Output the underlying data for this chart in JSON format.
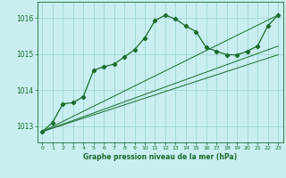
{
  "title": "Graphe pression niveau de la mer (hPa)",
  "background_color": "#c8eef0",
  "grid_color": "#a0d8d0",
  "line_color": "#1a6b2a",
  "xlim": [
    -0.5,
    23.5
  ],
  "ylim": [
    1012.55,
    1016.45
  ],
  "yticks": [
    1013,
    1014,
    1015,
    1016
  ],
  "xticks": [
    0,
    1,
    2,
    3,
    4,
    5,
    6,
    7,
    8,
    9,
    10,
    11,
    12,
    13,
    14,
    15,
    16,
    17,
    18,
    19,
    20,
    21,
    22,
    23
  ],
  "main_line": [
    [
      0,
      1012.85
    ],
    [
      1,
      1013.1
    ],
    [
      2,
      1013.62
    ],
    [
      3,
      1013.65
    ],
    [
      4,
      1013.82
    ],
    [
      5,
      1014.55
    ],
    [
      6,
      1014.65
    ],
    [
      7,
      1014.72
    ],
    [
      8,
      1014.92
    ],
    [
      9,
      1015.12
    ],
    [
      10,
      1015.45
    ],
    [
      11,
      1015.93
    ],
    [
      12,
      1016.08
    ],
    [
      13,
      1015.97
    ],
    [
      14,
      1015.78
    ],
    [
      15,
      1015.62
    ],
    [
      16,
      1015.18
    ],
    [
      17,
      1015.08
    ],
    [
      18,
      1014.98
    ],
    [
      19,
      1014.98
    ],
    [
      20,
      1015.08
    ],
    [
      21,
      1015.22
    ],
    [
      22,
      1015.78
    ],
    [
      23,
      1016.08
    ]
  ],
  "straight_line1": [
    [
      0,
      1012.85
    ],
    [
      23,
      1016.08
    ]
  ],
  "straight_line2": [
    [
      0,
      1012.85
    ],
    [
      23,
      1014.98
    ]
  ],
  "straight_line3": [
    [
      0,
      1012.85
    ],
    [
      23,
      1015.22
    ]
  ]
}
